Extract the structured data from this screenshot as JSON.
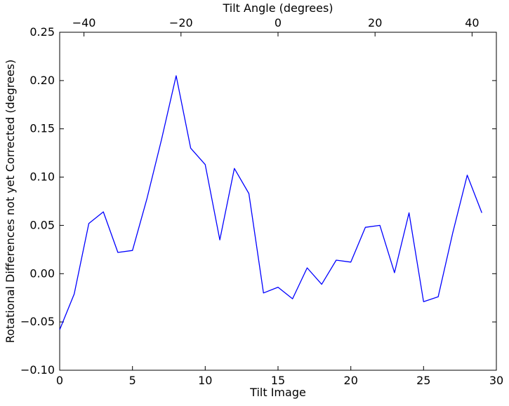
{
  "figure": {
    "background_color": "#ffffff",
    "axis_color": "#000000",
    "line_color": "#0000ff"
  },
  "chart_data": {
    "type": "line",
    "title": "Tilt Angle (degrees)",
    "xlabel": "Tilt Image",
    "ylabel": "Rotational Differences not yet Corrected (degrees)",
    "legend": null,
    "grid": false,
    "xlim": [
      0,
      30
    ],
    "ylim": [
      -0.1,
      0.25
    ],
    "x_ticks": [
      0,
      5,
      10,
      15,
      20,
      25,
      30
    ],
    "x_tick_labels": [
      "0",
      "5",
      "10",
      "15",
      "20",
      "25",
      "30"
    ],
    "y_ticks": [
      -0.1,
      -0.05,
      0.0,
      0.05,
      0.1,
      0.15,
      0.2,
      0.25
    ],
    "y_tick_labels": [
      "−0.10",
      "−0.05",
      "0.00",
      "0.05",
      "0.10",
      "0.15",
      "0.20",
      "0.25"
    ],
    "top_axis": {
      "label": "Tilt Angle (degrees)",
      "lim": [
        -45,
        45
      ],
      "ticks": [
        -40,
        -20,
        0,
        20,
        40
      ],
      "tick_labels": [
        "−40",
        "−20",
        "0",
        "20",
        "40"
      ]
    },
    "x": [
      0,
      1,
      2,
      3,
      4,
      5,
      6,
      7,
      8,
      9,
      10,
      11,
      12,
      13,
      14,
      15,
      16,
      17,
      18,
      19,
      20,
      21,
      22,
      23,
      24,
      25,
      26,
      27,
      28,
      29
    ],
    "y": [
      -0.058,
      -0.021,
      0.052,
      0.064,
      0.022,
      0.024,
      0.078,
      0.139,
      0.205,
      0.13,
      0.113,
      0.035,
      0.109,
      0.083,
      -0.02,
      -0.014,
      -0.026,
      0.006,
      -0.011,
      0.014,
      0.012,
      0.048,
      0.05,
      0.001,
      0.063,
      -0.029,
      -0.024,
      0.042,
      0.102,
      0.063
    ]
  }
}
